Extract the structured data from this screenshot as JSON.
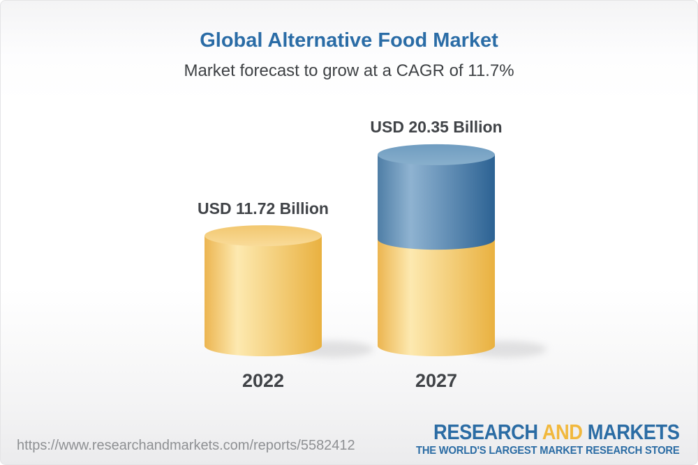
{
  "header": {
    "title": "Global Alternative Food Market",
    "subtitle": "Market forecast to grow at a CAGR of 11.7%"
  },
  "chart_data": {
    "type": "bar",
    "variant": "3d-cylinder",
    "categories": [
      "2022",
      "2027"
    ],
    "values": [
      11.72,
      20.35
    ],
    "value_labels": [
      "USD 11.72 Billion",
      "USD 20.35 Billion"
    ],
    "unit": "USD Billion",
    "cagr_pct": 11.7,
    "growth_segment_note": "2027 bar shows 2022 base in yellow plus forecast growth in blue",
    "colors": {
      "yellow_edge_left": "#ECB550",
      "yellow_highlight": "#FDE9B0",
      "yellow_edge_right": "#E9B140",
      "yellow_top_dark": "#F2C76F",
      "yellow_top_light": "#F9DB99",
      "blue_edge_left": "#4F7EA6",
      "blue_highlight": "#8FB3D1",
      "blue_edge_right": "#2C6293",
      "blue_top_dark": "#6F9CC0",
      "blue_top_light": "#88AFCC",
      "shadow": "#c7c7c9"
    }
  },
  "footer": {
    "url": "https://www.researchandmarkets.com/reports/5582412",
    "logo": {
      "word1": "RESEARCH",
      "word2": "AND",
      "word3": "MARKETS",
      "tagline": "THE WORLD'S LARGEST MARKET RESEARCH STORE",
      "blue": "#2B6CA4",
      "yellow": "#F1B83D"
    }
  },
  "colors": {
    "title_blue": "#2A6CA6",
    "subtitle_gray": "#3E4144",
    "label_gray": "#404347",
    "url_gray": "#8E9093"
  }
}
